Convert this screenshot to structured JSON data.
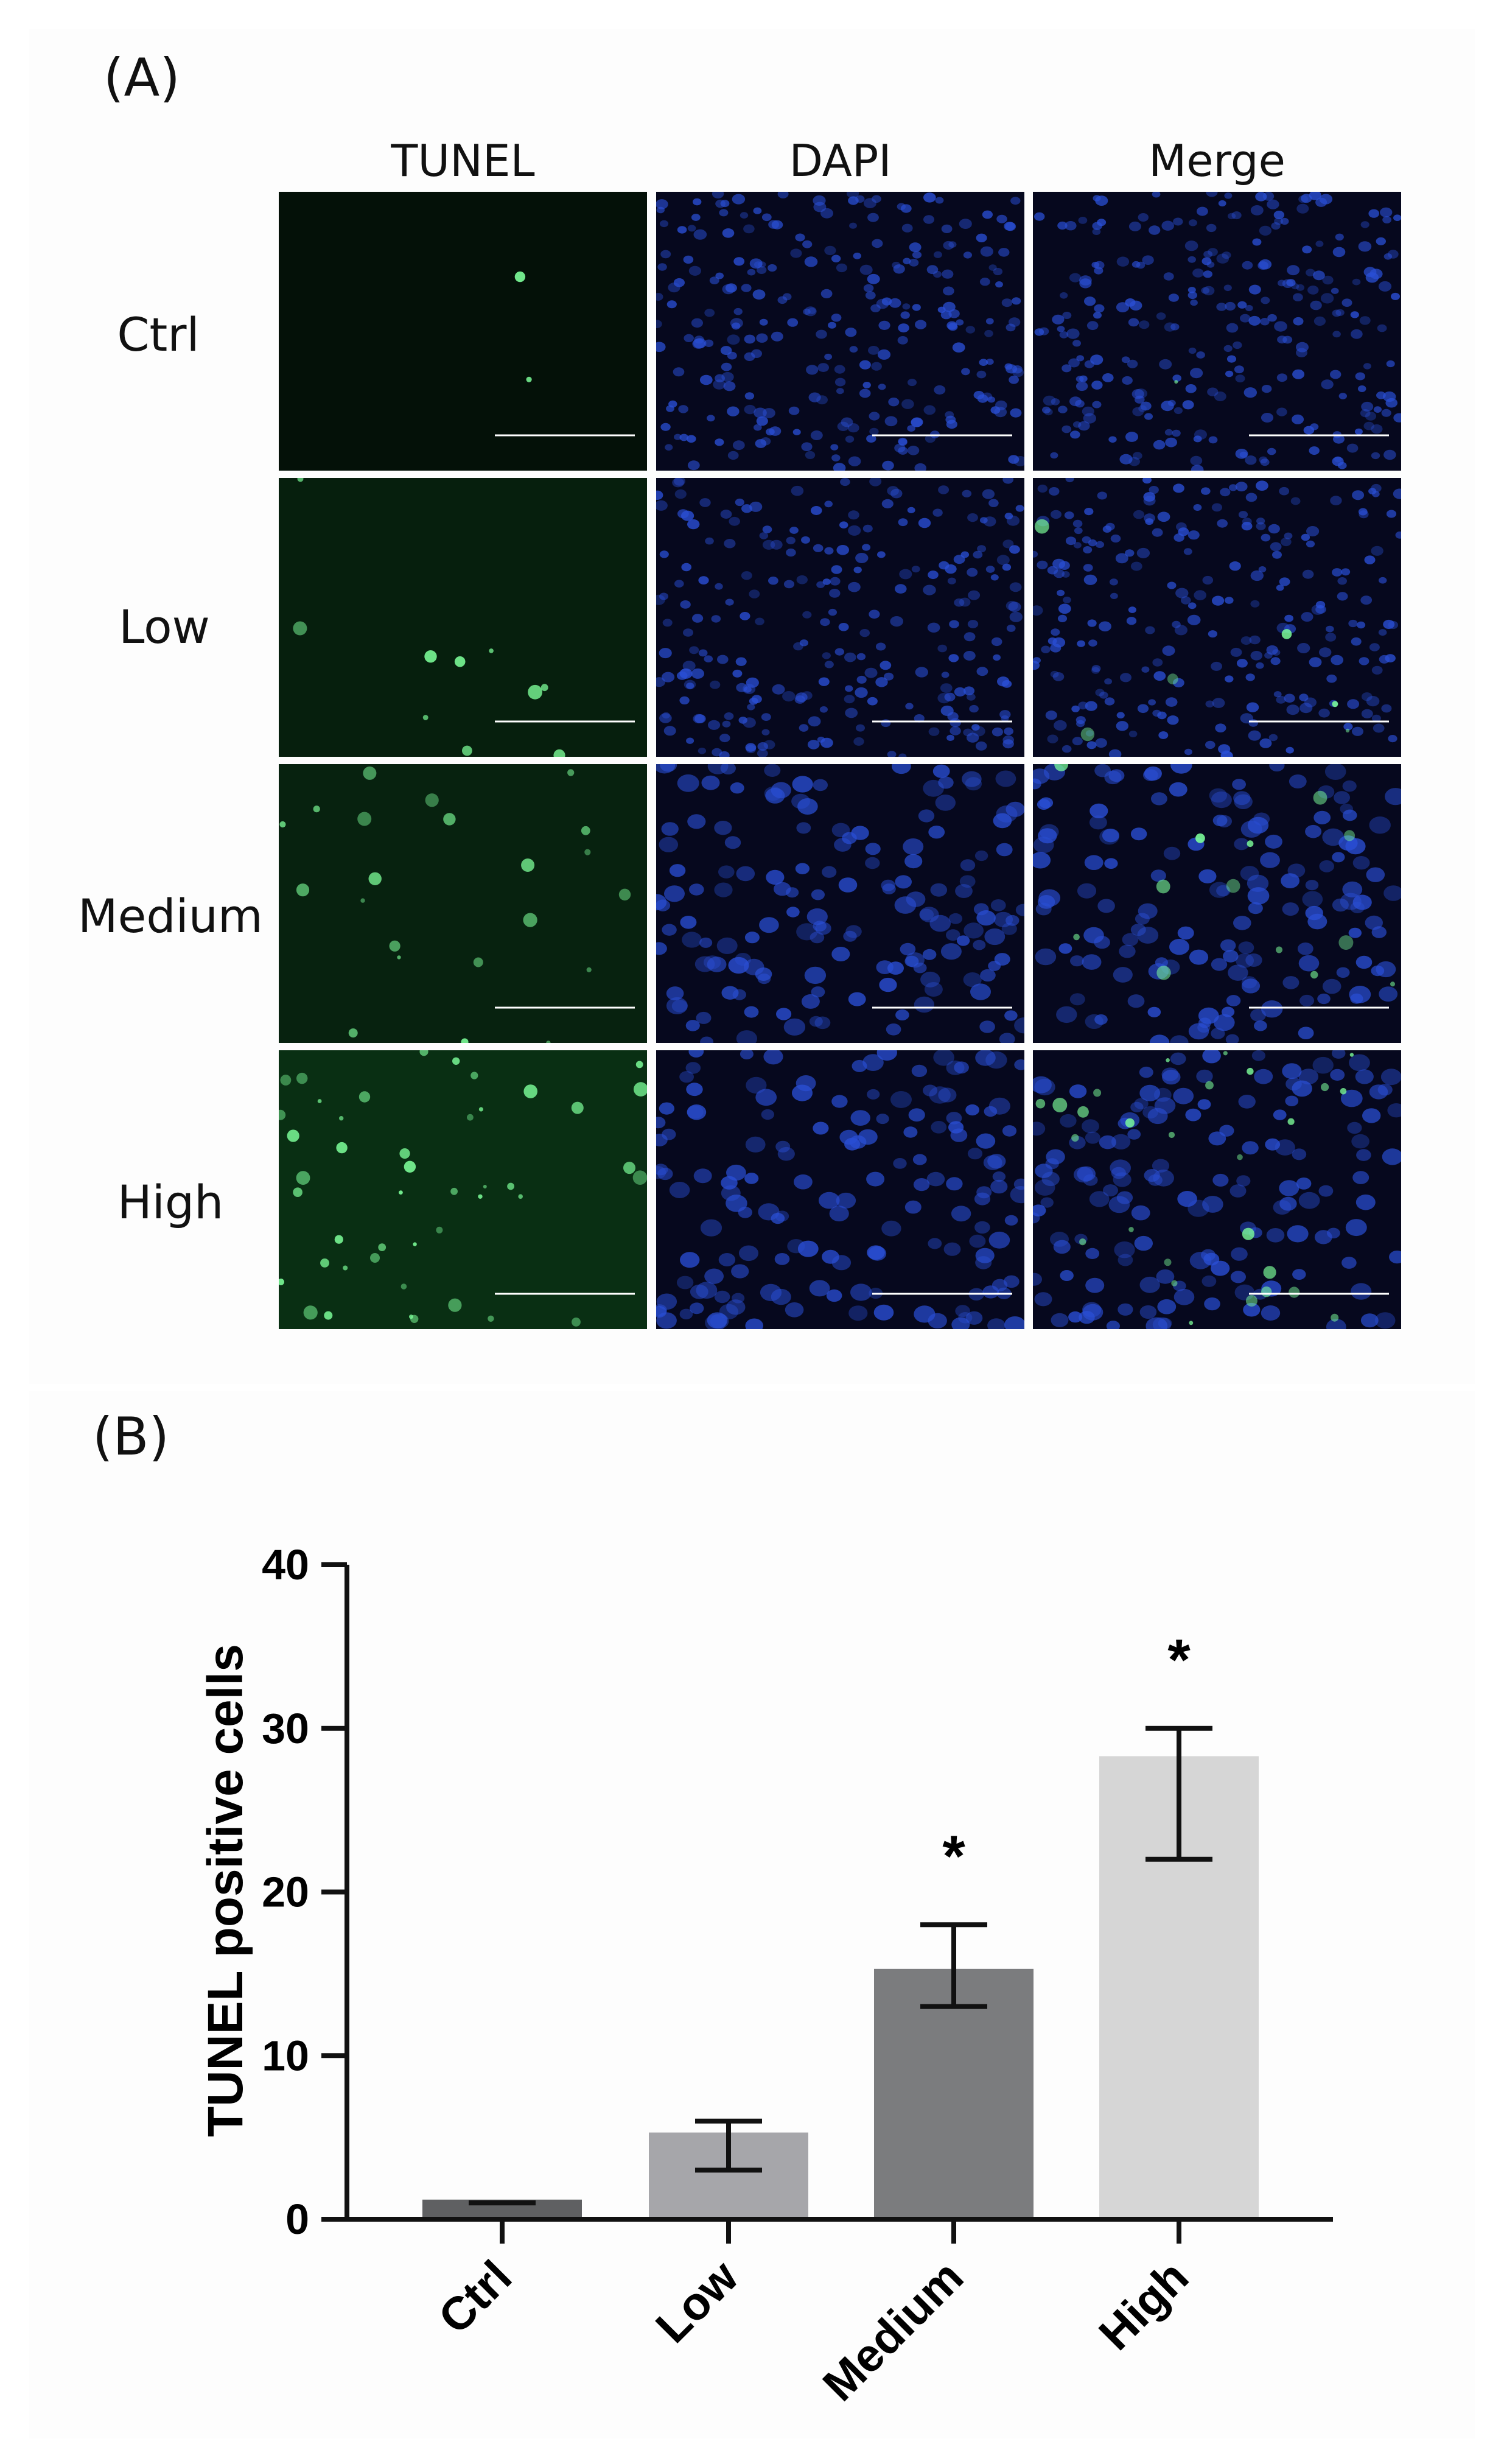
{
  "panel_a": {
    "label": "(A)",
    "columns": [
      "TUNEL",
      "DAPI",
      "Merge"
    ],
    "rows": [
      "Ctrl",
      "Low",
      "Medium",
      "High"
    ]
  },
  "panel_b": {
    "label": "(B)"
  },
  "colors": {
    "tunel_green": "#1fbf4a",
    "dapi_blue": "#2a4fd6",
    "background_dark": "#05070d"
  },
  "chart_data": {
    "type": "bar",
    "categories": [
      "Ctrl",
      "Low",
      "Medium",
      "High"
    ],
    "values": [
      1.2,
      5.3,
      15.3,
      28.3
    ],
    "error_low": [
      1.0,
      3.0,
      13.0,
      22.0
    ],
    "error_high": [
      1.0,
      6.0,
      18.0,
      30.0
    ],
    "significance": [
      "",
      "",
      "*",
      "*"
    ],
    "bar_colors": [
      "#5f6062",
      "#a6a6aa",
      "#7b7c7e",
      "#d6d6d6"
    ],
    "title": "",
    "xlabel": "",
    "ylabel": "TUNEL positive cells",
    "ylim": [
      0,
      40
    ],
    "yticks": [
      0,
      10,
      20,
      30,
      40
    ],
    "grid": false
  }
}
